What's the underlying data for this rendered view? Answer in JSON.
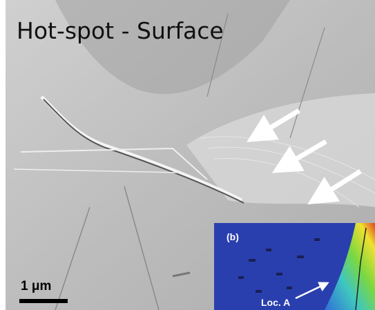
{
  "title": "Hot-spot - Surface",
  "scale_bar": {
    "label": "1 μm"
  },
  "inset": {
    "label": "(b)",
    "annotation": "Loc. A"
  }
}
